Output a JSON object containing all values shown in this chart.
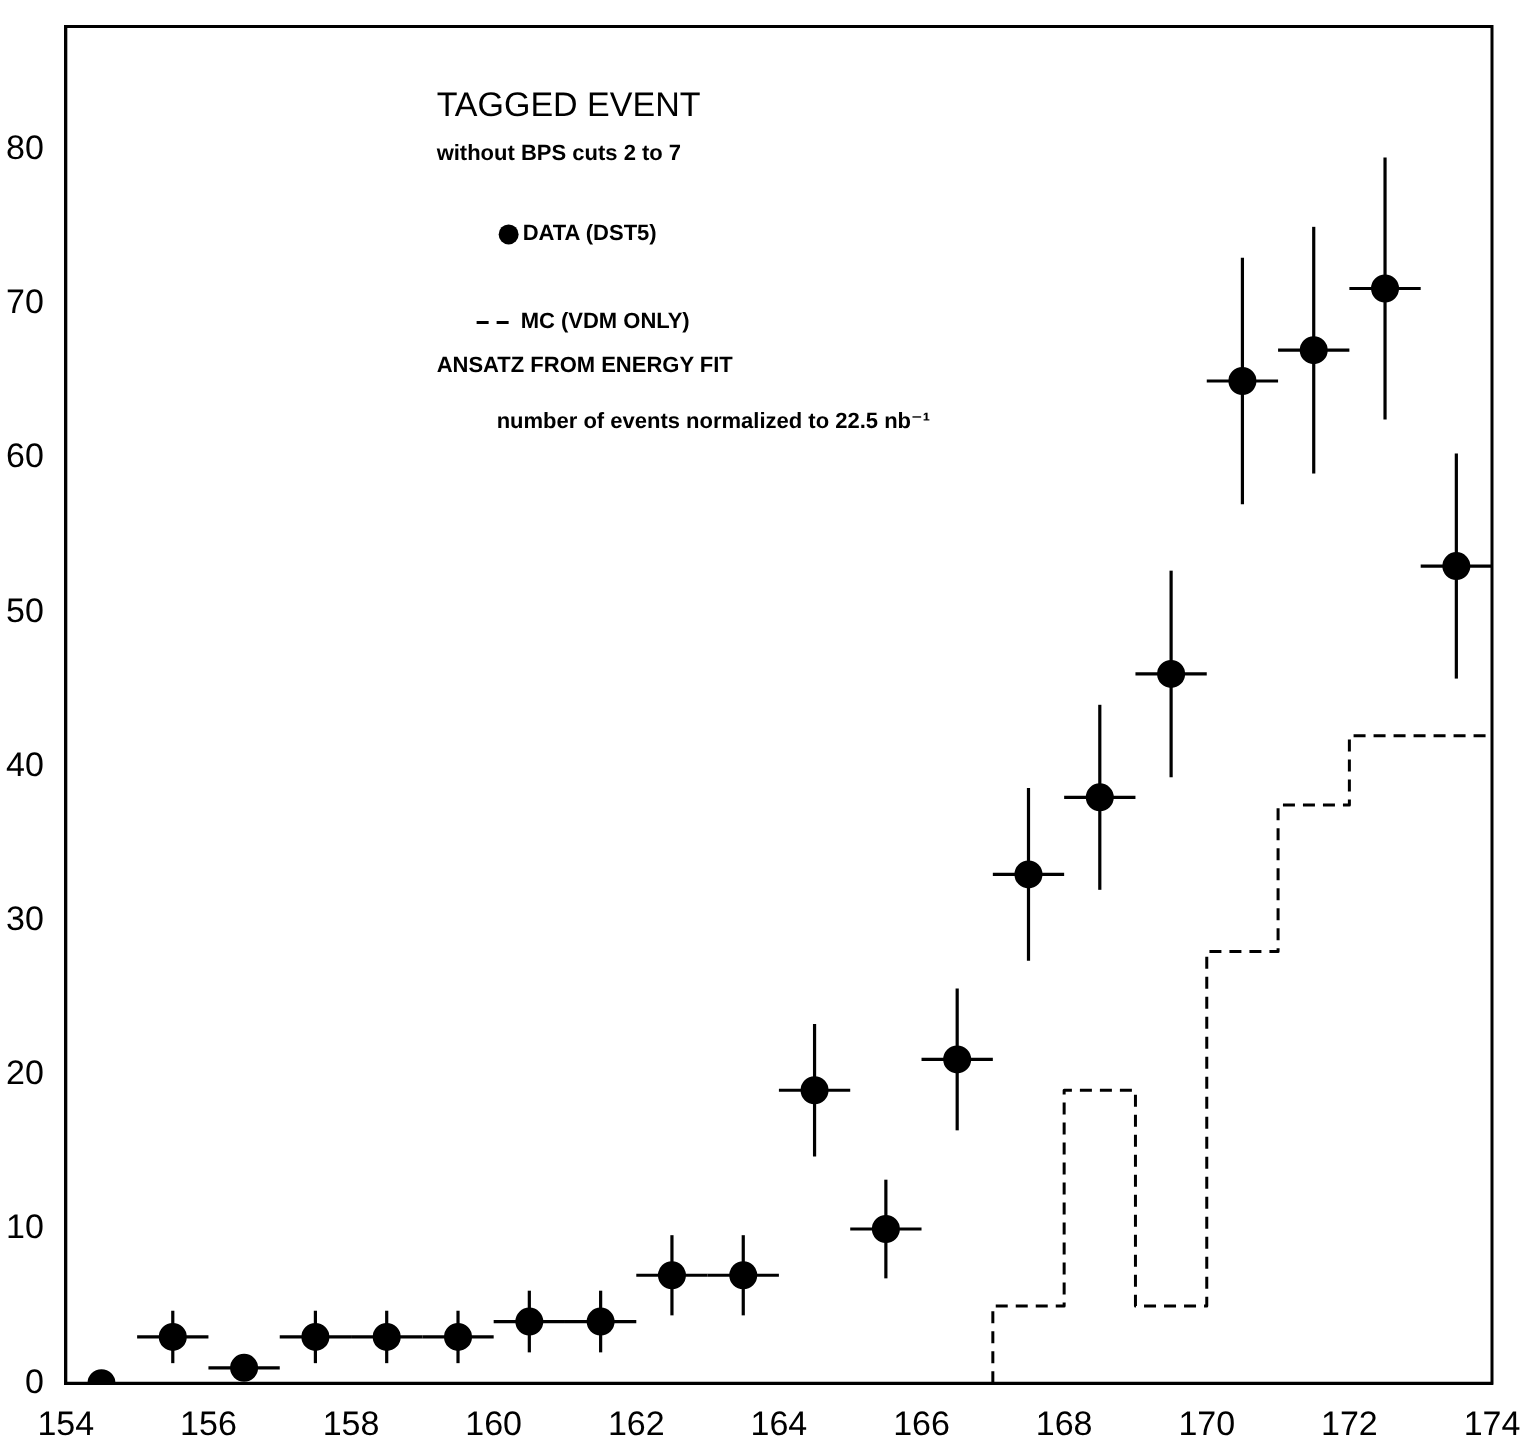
{
  "chart_data": {
    "type": "scatter",
    "title": "TAGGED EVENT",
    "subtitle": "without BPS cuts 2 to 7",
    "annotations": [
      "ANSATZ FROM ENERGY FIT",
      "number of events normalized to 22.5 nb⁻¹"
    ],
    "series": [
      {
        "name": "DATA (DST5)",
        "color": "#000000",
        "marker": "circle",
        "x": [
          154.5,
          155.5,
          156.5,
          157.5,
          158.5,
          159.5,
          160.5,
          161.5,
          162.5,
          163.5,
          164.5,
          165.5,
          166.5,
          167.5,
          168.5,
          169.5,
          170.5,
          171.5,
          172.5,
          173.5
        ],
        "values": [
          0,
          3,
          1,
          3,
          3,
          3,
          4,
          4,
          7,
          7,
          19,
          10,
          21,
          33,
          38,
          46,
          65,
          67,
          71,
          53
        ],
        "errors": [
          null,
          1.7,
          0.8,
          1.7,
          1.7,
          1.7,
          2,
          2,
          2.6,
          2.6,
          4.3,
          3.2,
          4.6,
          5.6,
          6,
          6.7,
          8,
          8,
          8.5,
          7.3
        ],
        "xerrors": [
          null,
          0.5,
          0.5,
          0.5,
          0.5,
          0.5,
          0.5,
          0.5,
          0.5,
          0.5,
          0.5,
          0.5,
          0.5,
          0.5,
          0.5,
          0.5,
          0.5,
          0.5,
          0.5,
          0.5
        ]
      },
      {
        "name": "MC (VDM ONLY)",
        "type": "step",
        "color": "#000000",
        "line_style": "dashed",
        "marker": "none",
        "x": [
          167,
          167,
          168,
          169,
          170,
          171,
          172,
          174
        ],
        "values": [
          0,
          5,
          19,
          5,
          28,
          37.5,
          42,
          42
        ]
      }
    ],
    "xlim": [
      154,
      174
    ],
    "xticks": [
      154,
      156,
      158,
      160,
      162,
      164,
      166,
      168,
      170,
      172,
      174
    ],
    "ylim": [
      0,
      88
    ],
    "yticks": [
      0,
      10,
      20,
      30,
      40,
      50,
      60,
      70,
      80
    ],
    "grid": false,
    "legend": "top left"
  }
}
